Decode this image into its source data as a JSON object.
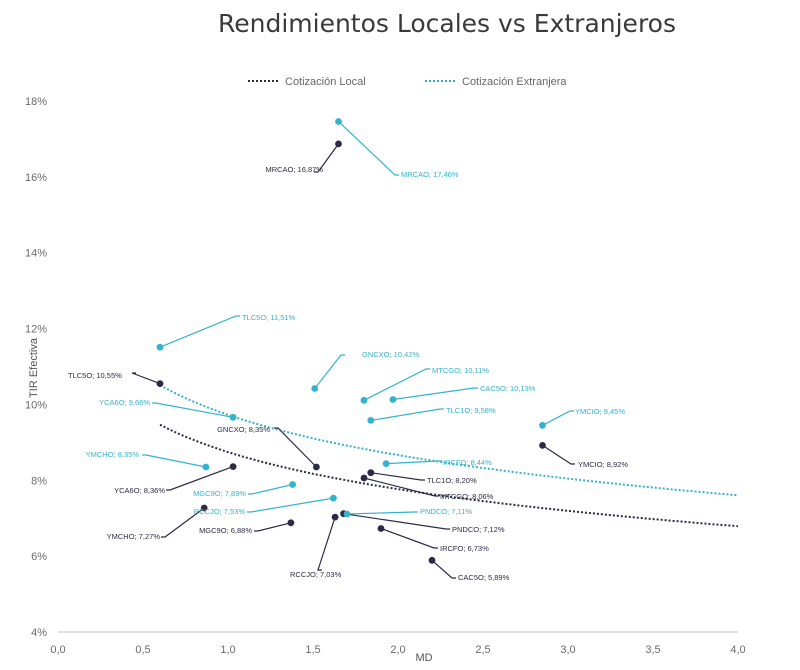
{
  "chart_data": {
    "type": "scatter",
    "title": "Rendimientos Locales vs Extranjeros",
    "xlabel": "MD",
    "ylabel": "TIR Efectiva",
    "xlim": [
      0,
      4
    ],
    "ylim": [
      4,
      18
    ],
    "x_ticks": [
      "0,0",
      "0,5",
      "1,0",
      "1,5",
      "2,0",
      "2,5",
      "3,0",
      "3,5",
      "4,0"
    ],
    "y_ticks": [
      "4%",
      "6%",
      "8%",
      "10%",
      "12%",
      "14%",
      "16%",
      "18%"
    ],
    "grid": false,
    "legend_position": "top-center",
    "colors": {
      "local": "#2b2b45",
      "extranjera": "#34b3cc"
    },
    "series": [
      {
        "name": "Cotización Local",
        "key": "local",
        "points": [
          {
            "x": 0.6,
            "y": 10.55,
            "label": "TLC5O; 10,55%"
          },
          {
            "x": 1.65,
            "y": 16.87,
            "label": "MRCAO; 16,87%"
          },
          {
            "x": 1.52,
            "y": 8.35,
            "label": "GNCXO; 8,35%"
          },
          {
            "x": 1.03,
            "y": 8.36,
            "label": "YCA6O; 8,36%"
          },
          {
            "x": 0.86,
            "y": 7.27,
            "label": "YMCHO; 7,27%"
          },
          {
            "x": 1.37,
            "y": 6.88,
            "label": "MGC9O; 6,88%"
          },
          {
            "x": 1.63,
            "y": 7.03,
            "label": "RCCJO; 7,03%"
          },
          {
            "x": 1.8,
            "y": 8.06,
            "label": "MTCGO; 8,06%"
          },
          {
            "x": 1.84,
            "y": 8.2,
            "label": "TLC1O; 8,20%"
          },
          {
            "x": 1.9,
            "y": 6.73,
            "label": "IRCFO; 6,73%"
          },
          {
            "x": 2.85,
            "y": 8.92,
            "label": "YMCIO; 8,92%"
          },
          {
            "x": 2.2,
            "y": 5.89,
            "label": "CAC5O; 5,89%"
          },
          {
            "x": 1.68,
            "y": 7.12,
            "label": "PNDCO; 7,12%"
          }
        ]
      },
      {
        "name": "Cotización Extranjera",
        "key": "extranjera",
        "points": [
          {
            "x": 0.6,
            "y": 11.51,
            "label": "TLC5O; 11,51%"
          },
          {
            "x": 1.65,
            "y": 17.46,
            "label": "MRCAO; 17,46%"
          },
          {
            "x": 1.51,
            "y": 10.42,
            "label": "GNCXO; 10,42%"
          },
          {
            "x": 1.8,
            "y": 10.11,
            "label": "MTCGO; 10,11%"
          },
          {
            "x": 1.97,
            "y": 10.13,
            "label": "CAC5O; 10,13%"
          },
          {
            "x": 1.03,
            "y": 9.66,
            "label": "YCA6O; 9,66%"
          },
          {
            "x": 1.84,
            "y": 9.58,
            "label": "TLC1O; 9,58%"
          },
          {
            "x": 2.85,
            "y": 9.45,
            "label": "YMCIO; 9,45%"
          },
          {
            "x": 0.87,
            "y": 8.35,
            "label": "YMCHO; 8,35%"
          },
          {
            "x": 1.93,
            "y": 8.44,
            "label": "IRCFO; 8,44%"
          },
          {
            "x": 1.38,
            "y": 7.89,
            "label": "MGC9O; 7,89%"
          },
          {
            "x": 1.62,
            "y": 7.53,
            "label": "RCCJO; 7,53%"
          },
          {
            "x": 1.7,
            "y": 7.11,
            "label": "PNDCO; 7,11%"
          }
        ]
      }
    ],
    "trendlines": [
      {
        "series": "Cotización Local",
        "type": "log",
        "a": 8.744,
        "b": -1.41,
        "x_range": [
          0.6,
          4.0
        ]
      },
      {
        "series": "Cotización Extranjera",
        "type": "log",
        "a": 9.726,
        "b": -1.53,
        "x_range": [
          0.6,
          4.0
        ]
      }
    ]
  }
}
